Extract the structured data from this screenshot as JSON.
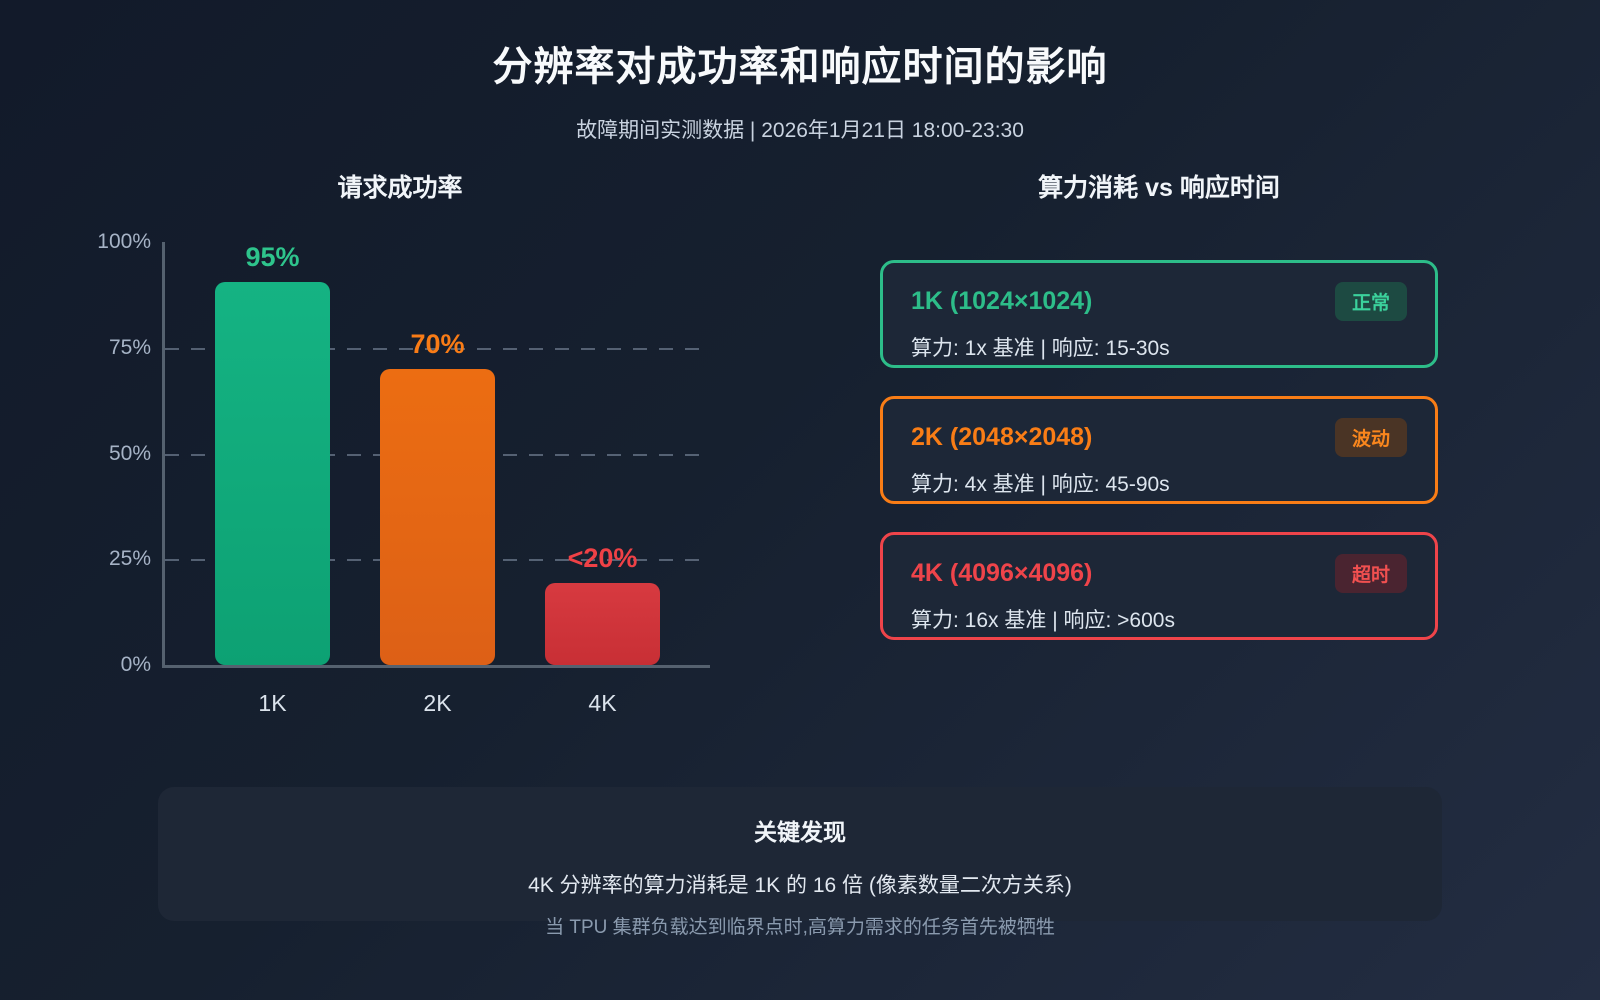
{
  "header": {
    "title": "分辨率对成功率和响应时间的影响",
    "subtitle": "故障期间实测数据 | 2026年1月21日 18:00-23:30"
  },
  "chart_data": {
    "type": "bar",
    "title": "请求成功率",
    "categories": [
      "1K",
      "2K",
      "4K"
    ],
    "values": [
      95,
      70,
      19.5
    ],
    "value_labels": [
      "95%",
      "70%",
      "<20%"
    ],
    "bar_colors_top": [
      "#15b383",
      "#ec6d12",
      "#d73a40"
    ],
    "bar_colors_bottom": [
      "#0da173",
      "#dd6016",
      "#c82f35"
    ],
    "label_colors": [
      "#2ec48c",
      "#f97c16",
      "#ef4146"
    ],
    "yticks": [
      "100%",
      "75%",
      "50%",
      "25%",
      "0%"
    ],
    "ylim": [
      0,
      100
    ],
    "grid": "dashed horizontal lines at 25%, 50%, 75%",
    "xlabel": "",
    "ylabel": ""
  },
  "right_panel": {
    "title": "算力消耗 vs 响应时间",
    "cards": [
      {
        "title": "1K (1024×1024)",
        "badge": "正常",
        "detail": "算力: 1x 基准 | 响应: 15-30s",
        "accent": "#2dbd89",
        "badge_bg": "#1d4a42",
        "badge_color": "#3bd29c"
      },
      {
        "title": "2K (2048×2048)",
        "badge": "波动",
        "detail": "算力: 4x 基准 | 响应: 45-90s",
        "accent": "#f97d16",
        "badge_bg": "#4a3425",
        "badge_color": "#f9861d"
      },
      {
        "title": "4K (4096×4096)",
        "badge": "超时",
        "detail": "算力: 16x 基准 | 响应: >600s",
        "accent": "#ef444a",
        "badge_bg": "#4a2430",
        "badge_color": "#f25050"
      }
    ]
  },
  "footer": {
    "title": "关键发现",
    "line1": "4K 分辨率的算力消耗是 1K 的 16 倍 (像素数量二次方关系)",
    "line2": "当 TPU 集群负载达到临界点时,高算力需求的任务首先被牺牲"
  }
}
